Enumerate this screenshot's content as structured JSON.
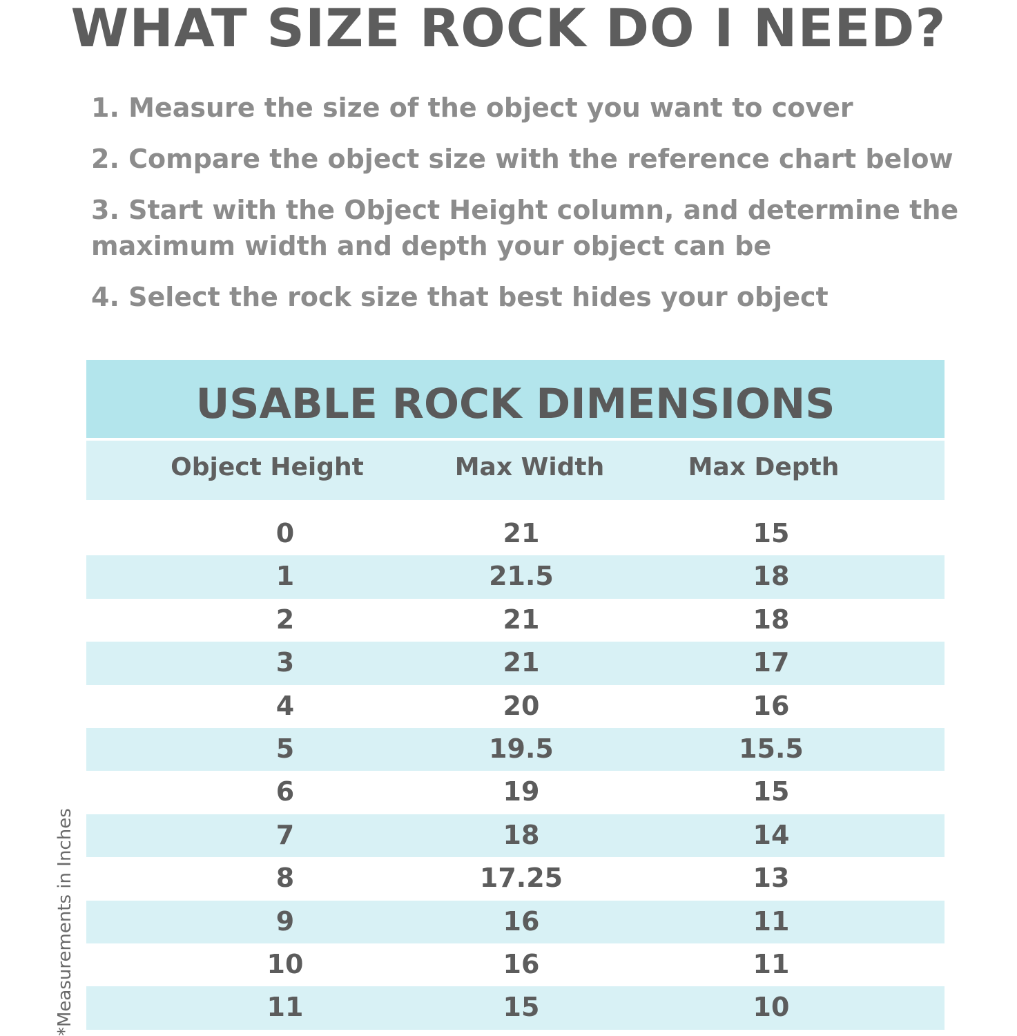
{
  "title": "WHAT SIZE ROCK DO I NEED?",
  "steps": [
    "1. Measure the size of the object you want to cover",
    "2. Compare the object size with the reference chart below",
    "3. Start with the Object Height column, and determine the maximum width and depth your object can be",
    "4. Select the rock size that best hides your object"
  ],
  "table": {
    "title": "USABLE ROCK DIMENSIONS",
    "headers": [
      "Object Height",
      "Max Width",
      "Max Depth"
    ],
    "rows": [
      [
        "0",
        "21",
        "15"
      ],
      [
        "1",
        "21.5",
        "18"
      ],
      [
        "2",
        "21",
        "18"
      ],
      [
        "3",
        "21",
        "17"
      ],
      [
        "4",
        "20",
        "16"
      ],
      [
        "5",
        "19.5",
        "15.5"
      ],
      [
        "6",
        "19",
        "15"
      ],
      [
        "7",
        "18",
        "14"
      ],
      [
        "8",
        "17.25",
        "13"
      ],
      [
        "9",
        "16",
        "11"
      ],
      [
        "10",
        "16",
        "11"
      ],
      [
        "11",
        "15",
        "10"
      ]
    ]
  },
  "note": "*Measurements in Inches",
  "colors": {
    "title_band": "#b3e5ec",
    "stripe": "#d8f1f5",
    "text": "#5a5a5a"
  }
}
